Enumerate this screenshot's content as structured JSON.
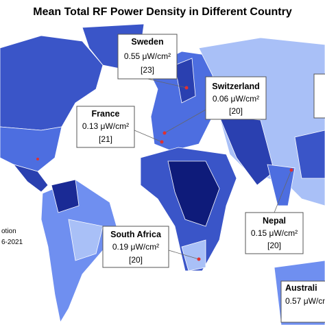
{
  "title": "Mean Total RF Power Density in Different Country",
  "callouts": [
    {
      "country": "Sweden",
      "value": "0.55 μW/cm²",
      "ref": "[23]"
    },
    {
      "country": "Switzerland",
      "value": "0.06 μW/cm²",
      "ref": "[20]"
    },
    {
      "country": "France",
      "value": "0.13 μW/cm²",
      "ref": "[21]"
    },
    {
      "country": "South Africa",
      "value": "0.19 μW/cm²",
      "ref": "[20]"
    },
    {
      "country": "Nepal",
      "value": "0.15 μW/cm²",
      "ref": "[20]"
    },
    {
      "country": "Australi",
      "value": "0.57 μW/cm"
    }
  ],
  "legend_fragments": [
    "otion",
    "6-2021"
  ]
}
